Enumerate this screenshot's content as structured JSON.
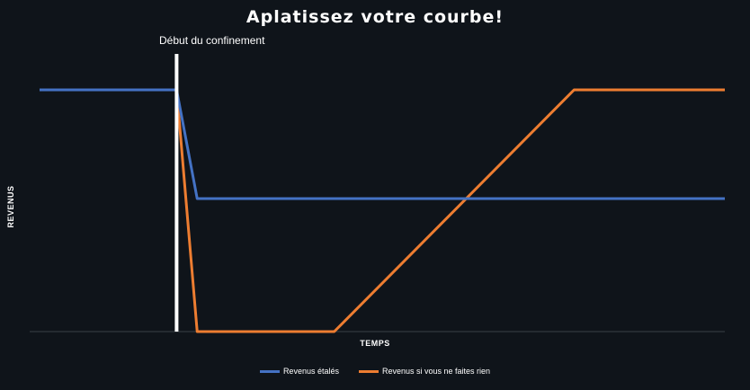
{
  "chart_data": {
    "type": "line",
    "title": "Aplatissez votre courbe!",
    "xlabel": "TEMPS",
    "ylabel": "REVENUS",
    "annotation": {
      "label": "Début du confinement",
      "x": 2
    },
    "xlim": [
      0,
      10
    ],
    "ylim": [
      0,
      10
    ],
    "grid": false,
    "legend": "bottom",
    "series": [
      {
        "name": "Revenus étalés",
        "color": "#4472c4",
        "x": [
          0,
          2,
          2.3,
          10
        ],
        "values": [
          10,
          10,
          5.5,
          5.5
        ]
      },
      {
        "name": "Revenus si vous ne faites rien",
        "color": "#ed7d31",
        "x": [
          0,
          2,
          2.3,
          4.3,
          7.8,
          10
        ],
        "values": [
          10,
          10,
          0,
          0,
          10,
          10
        ]
      }
    ]
  }
}
